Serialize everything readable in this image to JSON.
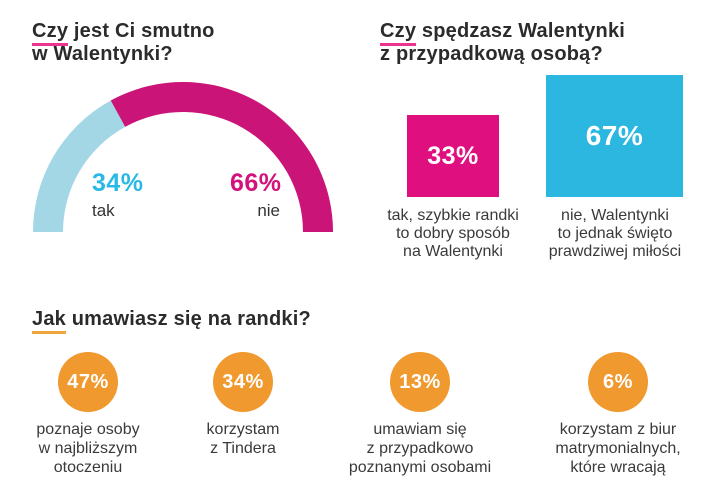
{
  "palette": {
    "magenta_arc": "#cb1478",
    "magenta_text": "#d4127c",
    "magenta_square": "#e00f80",
    "pink_underline": "#ec3390",
    "light_blue_arc": "#a3d7e6",
    "cyan_text": "#29b9e6",
    "cyan_square": "#2cb7e0",
    "orange_badge": "#f0992e",
    "orange_underline": "#f0a53c",
    "ink": "#2b2b2b",
    "caption_gray": "#3a3a3a"
  },
  "chart_data": [
    {
      "type": "pie",
      "variant": "semicircle-donut",
      "title": "Czy jest Ci smutno w Walentynki?",
      "title_lines": {
        "underlined": "Czy",
        "line1_rest": " jest Ci smutno",
        "line2": "w Walentynki?"
      },
      "categories": [
        "tak",
        "nie"
      ],
      "values": [
        34,
        66
      ],
      "value_labels": [
        "34%",
        "66%"
      ],
      "segment_colors": [
        "#a3d7e6",
        "#cb1478"
      ],
      "value_text_colors": [
        "#29b9e6",
        "#d4127c"
      ],
      "legend_position": "inside-below-arc",
      "total": 100
    },
    {
      "type": "pie",
      "variant": "proportional-squares",
      "title": "Czy spędzasz Walentynki z przypadkową osobą?",
      "title_lines": {
        "underlined": "Czy",
        "line1_rest": " spędzasz Walentynki",
        "line2": "z przypadkową osobą?"
      },
      "categories": [
        "tak, szybkie randki to dobry sposób na Walentynki",
        "nie, Walentynki to jednak święto prawdziwej miłości"
      ],
      "values": [
        33,
        67
      ],
      "items": [
        {
          "value_label": "33%",
          "color": "#e00f80",
          "caption_lines": [
            "tak, szybkie randki",
            "to dobry sposób",
            "na Walentynki"
          ]
        },
        {
          "value_label": "67%",
          "color": "#2cb7e0",
          "caption_lines": [
            "nie, Walentynki",
            "to jednak święto",
            "prawdziwej miłości"
          ]
        }
      ],
      "total": 100
    },
    {
      "type": "pie",
      "variant": "circle-badges",
      "title": "Jak umawiasz się na randki?",
      "title_lines": {
        "underlined": "Jak",
        "line1_rest": " umawiasz się na randki?"
      },
      "categories": [
        "poznaje osoby w najbliższym otoczeniu",
        "korzystam z Tindera",
        "umawiam się z przypadkowo poznanymi osobami",
        "korzystam z biur matrymonialnych, które wracają"
      ],
      "values": [
        47,
        34,
        13,
        6
      ],
      "badge_color": "#f0992e",
      "items": [
        {
          "value_label": "47%",
          "caption_lines": [
            "poznaje osoby",
            "w najbliższym",
            "otoczeniu"
          ]
        },
        {
          "value_label": "34%",
          "caption_lines": [
            "korzystam",
            "z Tindera"
          ]
        },
        {
          "value_label": "13%",
          "caption_lines": [
            "umawiam się",
            "z przypadkowo",
            "poznanymi osobami"
          ]
        },
        {
          "value_label": "6%",
          "caption_lines": [
            "korzystam z biur",
            "matrymonialnych,",
            "które wracają"
          ]
        }
      ],
      "total": 100
    }
  ]
}
